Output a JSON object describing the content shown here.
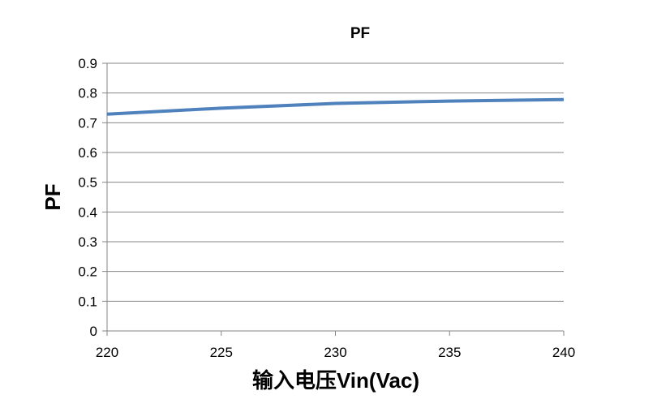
{
  "chart_data": {
    "type": "line",
    "title": "PF",
    "xlabel": "输入电压Vin(Vac)",
    "ylabel": "PF",
    "xlim": [
      220,
      240
    ],
    "ylim": [
      0,
      0.9
    ],
    "x_ticks": [
      "220",
      "225",
      "230",
      "235",
      "240"
    ],
    "y_ticks": [
      "0",
      "0.1",
      "0.2",
      "0.3",
      "0.4",
      "0.5",
      "0.6",
      "0.7",
      "0.8",
      "0.9"
    ],
    "grid": true,
    "legend": "none",
    "series": [
      {
        "x": [
          220,
          225,
          230,
          235,
          240
        ],
        "values": [
          0.729,
          0.749,
          0.765,
          0.773,
          0.778
        ],
        "color": "#4f81bd"
      }
    ]
  }
}
